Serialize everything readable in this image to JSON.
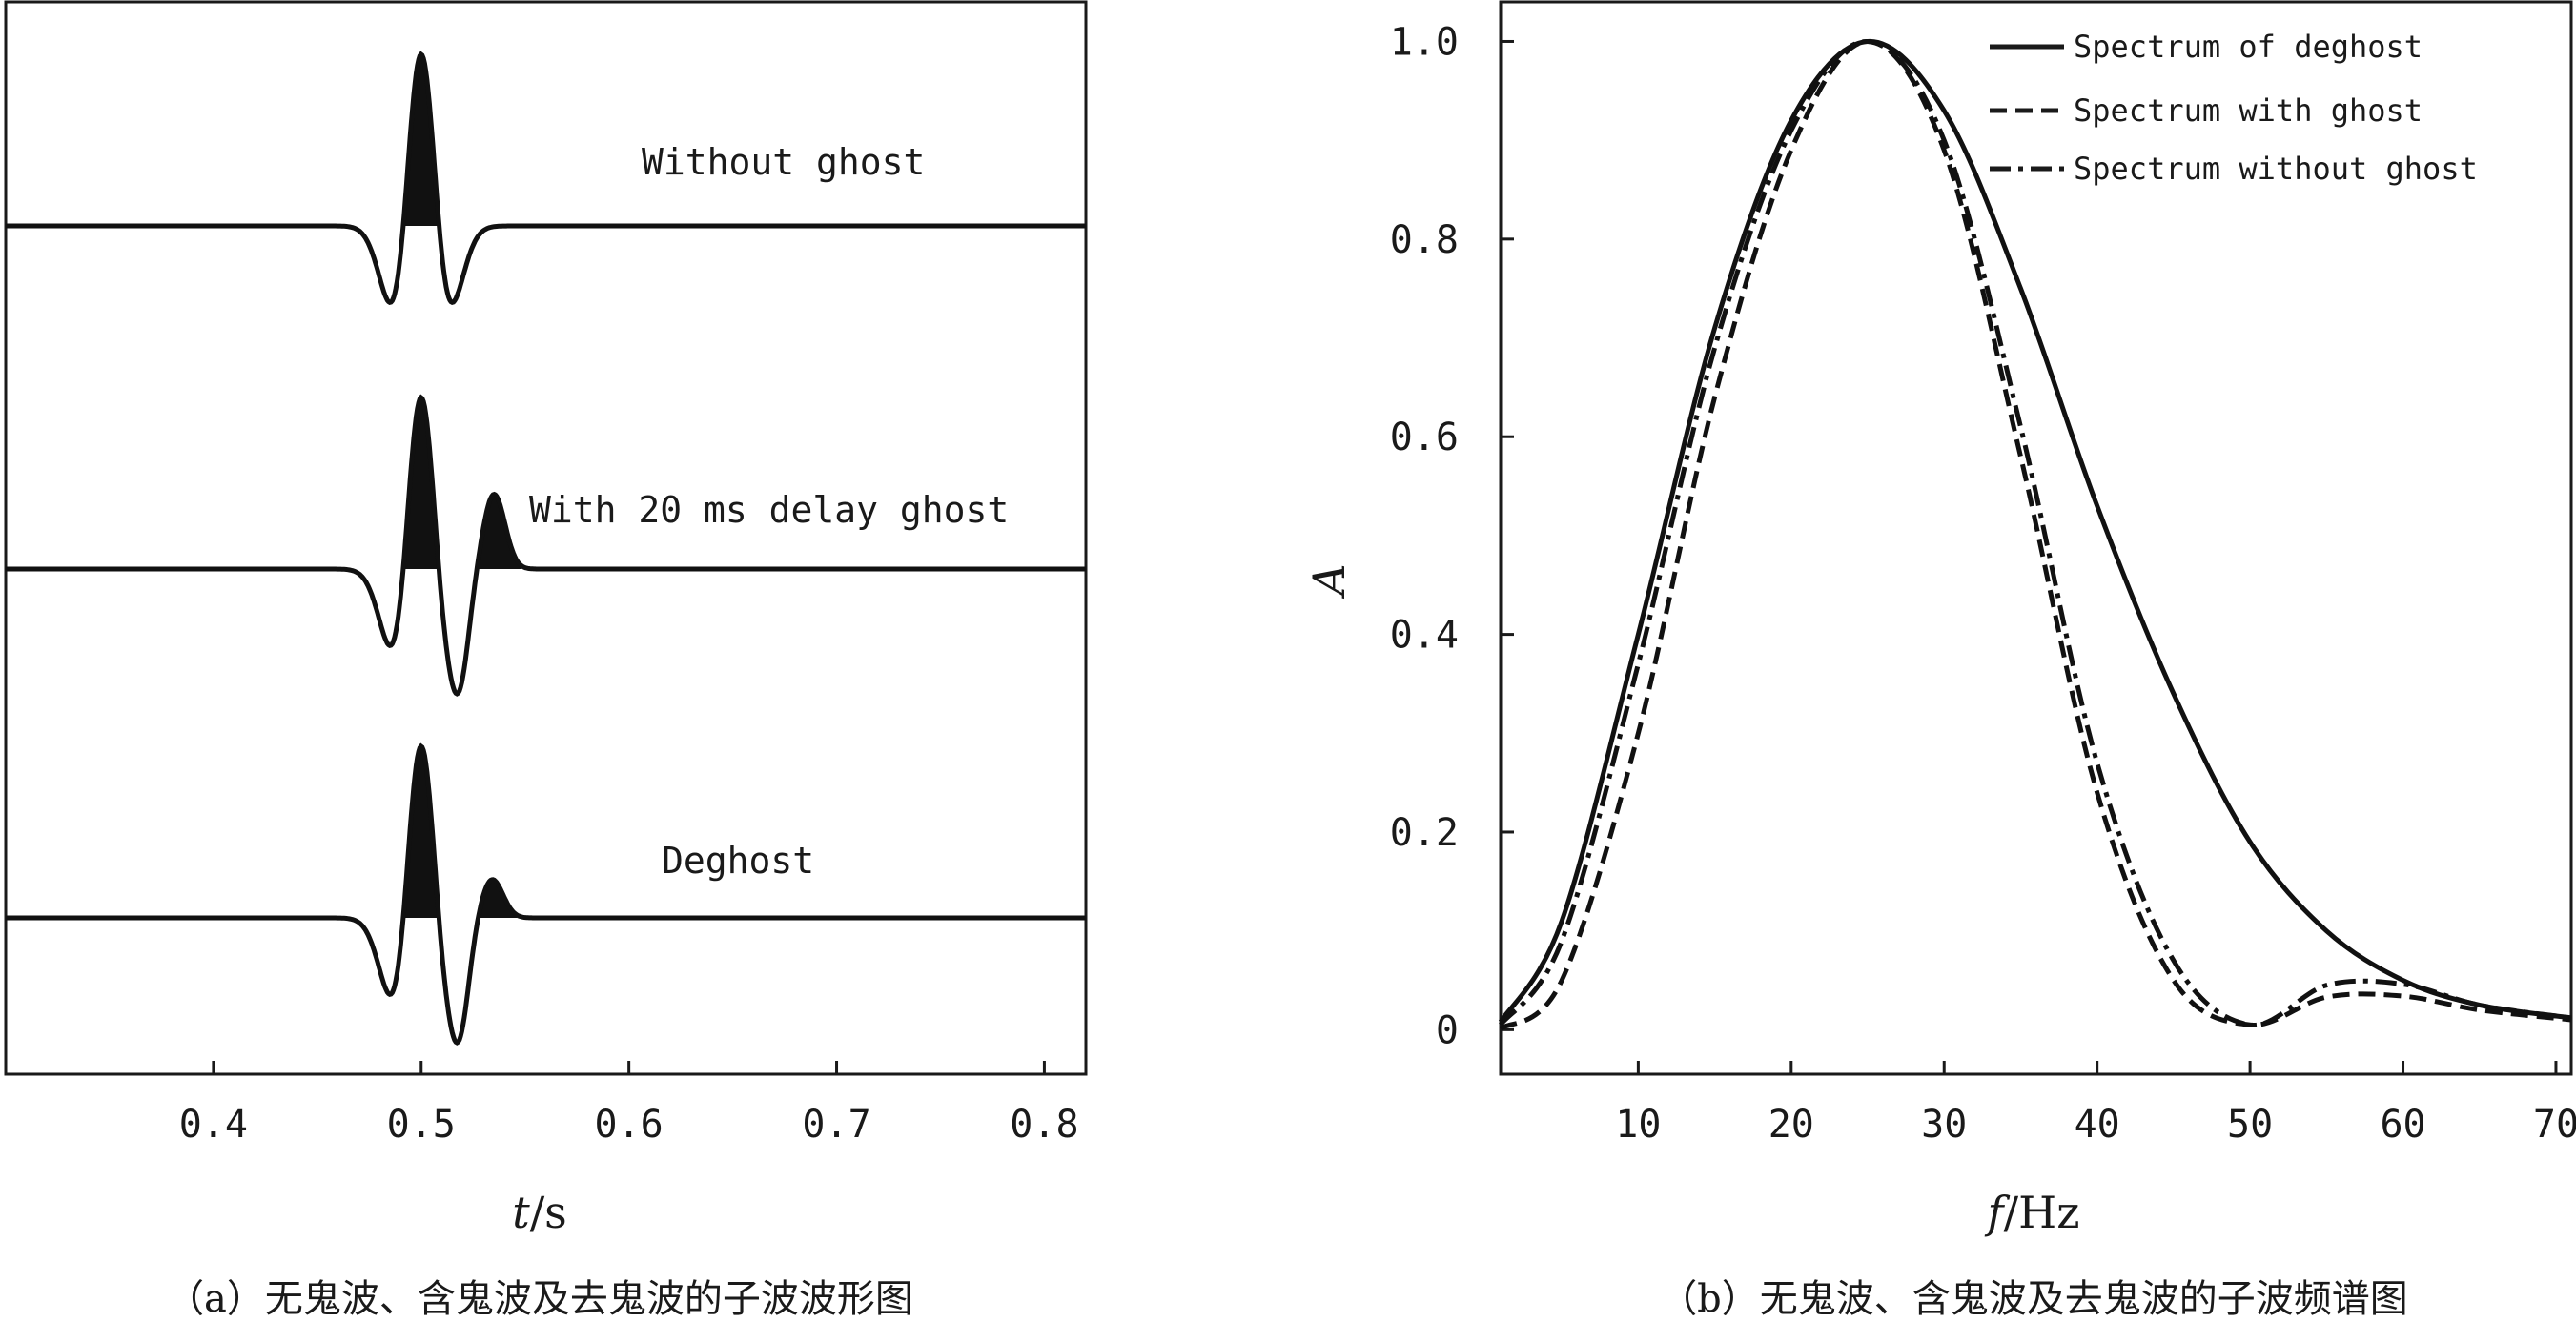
{
  "figure": {
    "caption_a": "（a）无鬼波、含鬼波及去鬼波的子波波形图",
    "caption_b": "（b）无鬼波、含鬼波及去鬼波的子波频谱图"
  },
  "chart_data": [
    {
      "type": "line",
      "panel": "a",
      "xlabel_var": "t",
      "xlabel_unit": "/s",
      "xlim": [
        0.3,
        0.82
      ],
      "xticks": [
        "0.4",
        "0.5",
        "0.6",
        "0.7",
        "0.8"
      ],
      "tick_values": [
        0.4,
        0.5,
        0.6,
        0.7,
        0.8
      ],
      "series": [
        {
          "name": "Without ghost",
          "wavelet_peak_time": 0.5,
          "trough_times": [
            0.483,
            0.517
          ],
          "ghost_delay_ms": null
        },
        {
          "name": "With 20 ms delay ghost",
          "wavelet_peak_time": 0.5,
          "trough_times": [
            0.483,
            0.519
          ],
          "ghost_delay_ms": 20,
          "ghost_peak_time": 0.535
        },
        {
          "name": "Deghost",
          "wavelet_peak_time": 0.5,
          "trough_times": [
            0.483,
            0.519
          ],
          "ghost_delay_ms": 20,
          "ghost_peak_time": 0.534
        }
      ]
    },
    {
      "type": "line",
      "panel": "b",
      "xlabel_var": "f",
      "xlabel_unit": "/Hz",
      "ylabel": "A",
      "xlim": [
        1,
        71
      ],
      "ylim": [
        -0.045,
        1.04
      ],
      "xticks": [
        "10",
        "20",
        "30",
        "40",
        "50",
        "60",
        "70"
      ],
      "xtick_values": [
        10,
        20,
        30,
        40,
        50,
        60,
        70
      ],
      "yticks": [
        "0",
        "0.2",
        "0.4",
        "0.6",
        "0.8",
        "1.0"
      ],
      "ytick_values": [
        0,
        0.2,
        0.4,
        0.6,
        0.8,
        1.0
      ],
      "legend_position": "top-right",
      "x": [
        1,
        5,
        10,
        15,
        20,
        25,
        30,
        35,
        40,
        45,
        50,
        55,
        60,
        65,
        71
      ],
      "series": [
        {
          "name": "Spectrum of deghost",
          "style": "solid",
          "values": [
            0.008,
            0.11,
            0.4,
            0.71,
            0.92,
            1.0,
            0.93,
            0.75,
            0.53,
            0.34,
            0.19,
            0.1,
            0.05,
            0.025,
            0.012
          ]
        },
        {
          "name": "Spectrum with ghost",
          "style": "dashed",
          "values": [
            0.001,
            0.05,
            0.3,
            0.64,
            0.89,
            1.0,
            0.89,
            0.58,
            0.24,
            0.05,
            0.005,
            0.033,
            0.034,
            0.02,
            0.01
          ]
        },
        {
          "name": "Spectrum without ghost",
          "style": "dashdot",
          "values": [
            0.005,
            0.09,
            0.37,
            0.69,
            0.91,
            1.0,
            0.9,
            0.61,
            0.27,
            0.07,
            0.005,
            0.045,
            0.046,
            0.025,
            0.012
          ]
        }
      ]
    }
  ]
}
